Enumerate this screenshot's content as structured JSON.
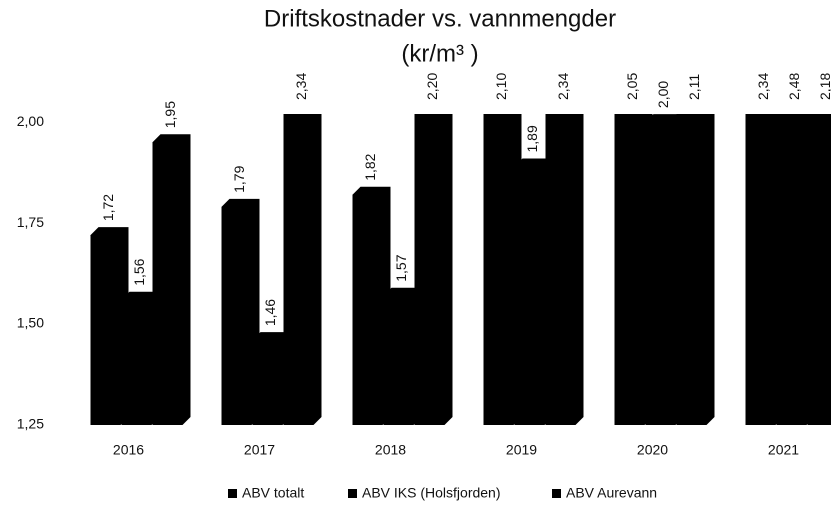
{
  "chart_data": {
    "type": "bar",
    "title": "Driftskostnader vs. vannmengder",
    "subtitle": "(kr/m³ )",
    "categories": [
      "2016",
      "2017",
      "2018",
      "2019",
      "2020",
      "2021"
    ],
    "series": [
      {
        "name": "ABV totalt",
        "color": "#000000",
        "values": [
          1.72,
          1.79,
          1.82,
          2.1,
          2.05,
          2.34
        ],
        "value_labels": [
          "1,72",
          "1,79",
          "1,82",
          "2,10",
          "2,05",
          "2,34"
        ]
      },
      {
        "name": "ABV IKS (Holsfjorden)",
        "color": "#000000",
        "values": [
          1.56,
          1.46,
          1.57,
          1.89,
          2.0,
          2.48
        ],
        "value_labels": [
          "1,56",
          "1,46",
          "1,57",
          "1,89",
          "2,00",
          "2,48"
        ]
      },
      {
        "name": "ABV Aurevann",
        "color": "#000000",
        "values": [
          1.95,
          2.34,
          2.2,
          2.34,
          2.11,
          2.18
        ],
        "value_labels": [
          "1,95",
          "2,34",
          "2,20",
          "2,34",
          "2,11",
          "2,18"
        ]
      }
    ],
    "ylim": [
      1.25,
      2.02
    ],
    "yticks": [
      {
        "value": 1.25,
        "label": "1,25"
      },
      {
        "value": 1.5,
        "label": "1,50"
      },
      {
        "value": 1.75,
        "label": "1,75"
      },
      {
        "value": 2,
        "label": "2,00"
      }
    ],
    "grid": false,
    "legend": "bottom"
  }
}
